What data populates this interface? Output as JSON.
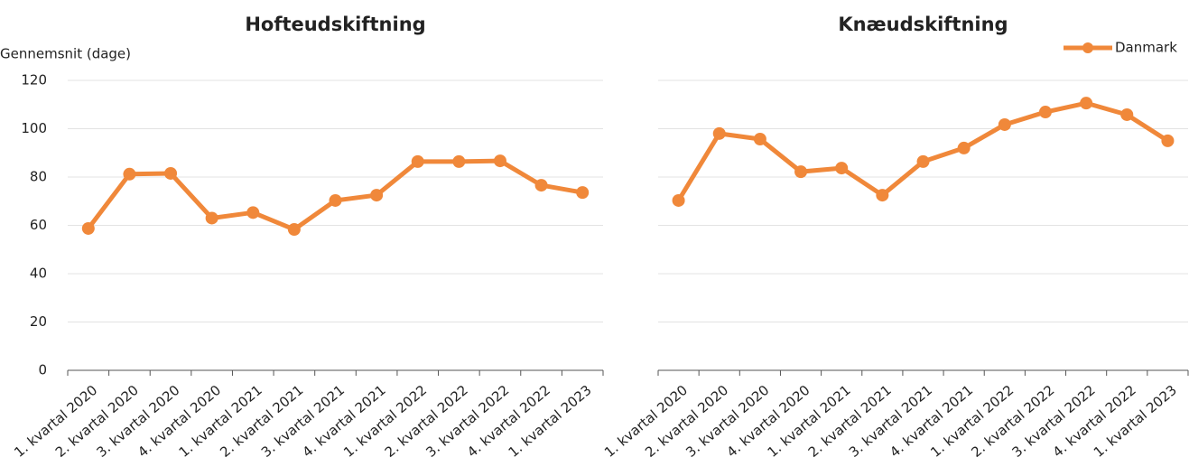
{
  "chart_data": [
    {
      "type": "line",
      "title": "Hofteudskiftning",
      "y_label": "Gennemsnit (dage)",
      "categories": [
        "1. kvartal 2020",
        "2. kvartal 2020",
        "3. kvartal 2020",
        "4. kvartal 2020",
        "1. kvartal 2021",
        "2. kvartal 2021",
        "3. kvartal 2021",
        "4. kvartal 2021",
        "1. kvartal 2022",
        "2. kvartal 2022",
        "3. kvartal 2022",
        "4. kvartal 2022",
        "1. kvartal 2023"
      ],
      "series": [
        {
          "name": "Danmark",
          "color": "#f0883a",
          "values": [
            58.7,
            81.2,
            81.5,
            63.0,
            65.3,
            58.3,
            70.3,
            72.5,
            86.4,
            86.4,
            86.7,
            76.6,
            73.6
          ]
        }
      ],
      "ylim": [
        0,
        120
      ],
      "yticks": [
        0,
        20,
        40,
        60,
        80,
        100,
        120
      ],
      "grid": true
    },
    {
      "type": "line",
      "title": "Knæudskiftning",
      "legend": "top-right",
      "categories": [
        "1. kvartal 2020",
        "2. kvartal 2020",
        "3. kvartal 2020",
        "4. kvartal 2020",
        "1. kvartal 2021",
        "2. kvartal 2021",
        "3. kvartal 2021",
        "4. kvartal 2021",
        "1. kvartal 2022",
        "2. kvartal 2022",
        "3. kvartal 2022",
        "4. kvartal 2022",
        "1. kvartal 2023"
      ],
      "series": [
        {
          "name": "Danmark",
          "color": "#f0883a",
          "values": [
            70.3,
            98.0,
            95.7,
            82.2,
            83.7,
            72.5,
            86.4,
            92.0,
            101.7,
            106.9,
            110.6,
            105.8,
            95.0
          ]
        }
      ],
      "ylim": [
        0,
        120
      ],
      "yticks": [
        0,
        20,
        40,
        60,
        80,
        100,
        120
      ],
      "grid": true
    }
  ]
}
